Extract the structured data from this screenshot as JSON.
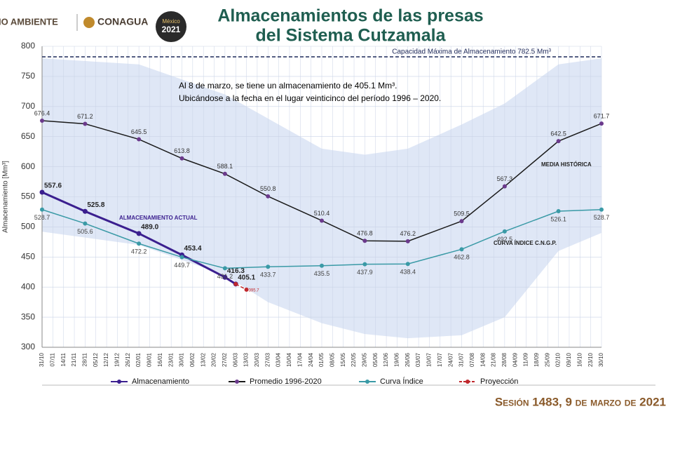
{
  "header": {
    "logo_left": "IO AMBIENTE",
    "logo_conagua": "CONAGUA",
    "logo_mexico": "México",
    "logo_year": "2021"
  },
  "chart_data": {
    "type": "line",
    "title": [
      "Almacenamientos de las presas",
      "del Sistema Cutzamala"
    ],
    "y_label": "Almacenamiento [Mm³]",
    "categories": [
      "31/10",
      "07/11",
      "14/11",
      "21/11",
      "28/11",
      "05/12",
      "12/12",
      "19/12",
      "26/12",
      "02/01",
      "09/01",
      "16/01",
      "23/01",
      "30/01",
      "06/02",
      "13/02",
      "20/02",
      "27/02",
      "06/03",
      "13/03",
      "20/03",
      "27/03",
      "03/04",
      "10/04",
      "17/04",
      "24/04",
      "01/05",
      "08/05",
      "15/05",
      "22/05",
      "29/05",
      "05/06",
      "12/06",
      "19/06",
      "26/06",
      "03/07",
      "10/07",
      "17/07",
      "24/07",
      "31/07",
      "07/08",
      "14/08",
      "21/08",
      "28/08",
      "04/09",
      "11/09",
      "18/09",
      "25/09",
      "02/10",
      "09/10",
      "16/10",
      "23/10",
      "30/10"
    ],
    "ylim": [
      300,
      800
    ],
    "yticks": [
      300,
      350,
      400,
      450,
      500,
      550,
      600,
      650,
      700,
      750,
      800
    ],
    "grid": true,
    "capacity": {
      "value": 782.5,
      "label": "Capacidad Máxima de Almacenamiento 782.5 Mm³",
      "color": "#1f2a5a"
    },
    "band": {
      "color": "#dfe7f6",
      "x": [
        "31/10",
        "02/01",
        "27/02",
        "27/03",
        "01/05",
        "29/05",
        "26/06",
        "31/07",
        "28/08",
        "02/10",
        "30/10"
      ],
      "upper": [
        780,
        770,
        720,
        680,
        630,
        620,
        630,
        670,
        705,
        770,
        780
      ],
      "lower": [
        492,
        470,
        420,
        375,
        340,
        322,
        315,
        320,
        350,
        460,
        490
      ]
    },
    "annotations": [
      "Al 8 de marzo, se tiene un almacenamiento de 405.1 Mm³.",
      "Ubicándose a la fecha en el lugar veinticinco del período 1996 – 2020.",
      "ALMACENAMIENTO ACTUAL",
      "MEDIA HISTÓRICA",
      "CURVA ÍNDICE C.N.G.P."
    ],
    "series": [
      {
        "name": "Almacenamiento",
        "color": "#3b1f8f",
        "marker_color": "#3b1f8f",
        "x": [
          "31/10",
          "28/11",
          "02/01",
          "30/01",
          "27/02",
          "06/03"
        ],
        "values": [
          557.6,
          525.8,
          489,
          453.4,
          416.3,
          405.1
        ],
        "value_labels": [
          "557.6",
          "525.8",
          "489.0",
          "453.4",
          "416.3",
          "405.1"
        ]
      },
      {
        "name": "Promedio 1996-2020",
        "color": "#1a1a1a",
        "marker_color": "#6b3a8c",
        "x": [
          "31/10",
          "28/11",
          "02/01",
          "30/01",
          "27/02",
          "27/03",
          "01/05",
          "29/05",
          "26/06",
          "31/07",
          "28/08",
          "02/10",
          "30/10"
        ],
        "values": [
          676.4,
          671.2,
          645.5,
          613.8,
          588.1,
          550.8,
          510.4,
          476.8,
          476.2,
          509.5,
          567.3,
          642.5,
          671.7
        ]
      },
      {
        "name": "Curva Índice",
        "color": "#3a9aa6",
        "marker_color": "#3a9aa6",
        "x": [
          "31/10",
          "28/11",
          "02/01",
          "30/01",
          "27/02",
          "27/03",
          "01/05",
          "29/05",
          "26/06",
          "31/07",
          "28/08",
          "02/10",
          "30/10"
        ],
        "values": [
          528.7,
          505.6,
          472.2,
          449.7,
          431.2,
          433.7,
          435.5,
          437.9,
          438.4,
          462.8,
          492.5,
          526.1,
          528.7
        ]
      },
      {
        "name": "Proyección",
        "color": "#c0282d",
        "marker_color": "#c0282d",
        "dashed": true,
        "x": [
          "06/03",
          "13/03"
        ],
        "values": [
          405.1,
          395.7
        ]
      }
    ]
  },
  "footer": "Sesión 1483, 9 de marzo de 2021"
}
